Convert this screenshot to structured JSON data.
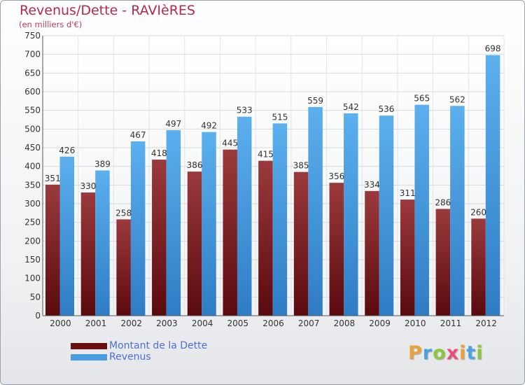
{
  "title": "Revenus/Dette - RAVIèRES",
  "subtitle": "(en milliers d'€)",
  "logo_text": "Proxiti",
  "logo_colors": [
    "#e8a23a",
    "#4aa3df",
    "#8cc63f",
    "#e94e77",
    "#e8a23a",
    "#4aa3df",
    "#8cc63f"
  ],
  "chart_data": {
    "type": "bar",
    "categories": [
      "2000",
      "2001",
      "2002",
      "2003",
      "2004",
      "2005",
      "2006",
      "2007",
      "2008",
      "2009",
      "2010",
      "2011",
      "2012"
    ],
    "series": [
      {
        "name": "Montant de la Dette",
        "color": "#7a1418",
        "values": [
          351,
          330,
          258,
          418,
          386,
          445,
          415,
          385,
          356,
          334,
          311,
          286,
          260
        ]
      },
      {
        "name": "Revenus",
        "color": "#4a9de0",
        "values": [
          426,
          389,
          467,
          497,
          492,
          533,
          515,
          559,
          542,
          536,
          565,
          562,
          698
        ]
      }
    ],
    "ylim": [
      0,
      750
    ],
    "yticks": [
      0,
      50,
      100,
      150,
      200,
      250,
      300,
      350,
      400,
      450,
      500,
      550,
      600,
      650,
      700,
      750
    ],
    "grid": true,
    "legend_position": "bottom-left",
    "xlabel": "",
    "ylabel": ""
  }
}
